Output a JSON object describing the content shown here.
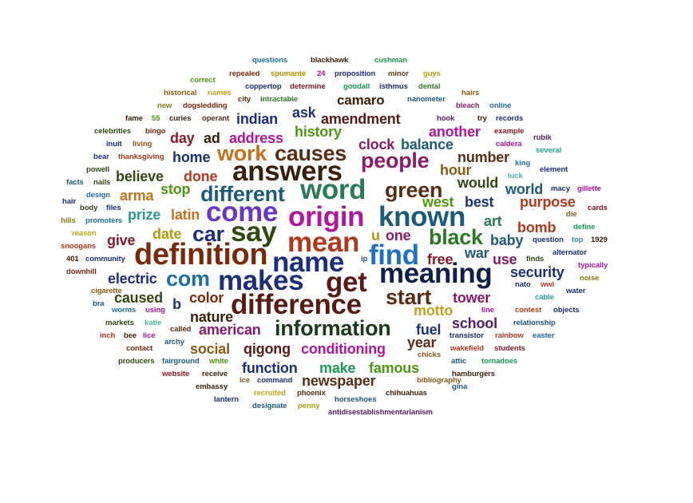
{
  "words": [
    {
      "text": "questions",
      "color": "#1f6fa6"
    },
    {
      "text": "blackhawk",
      "color": "#3b1e08"
    },
    {
      "text": "cushman",
      "color": "#1a9a52"
    },
    {
      "text": "repealed",
      "color": "#7a2a0a"
    },
    {
      "text": "spumante",
      "color": "#b0900a"
    },
    {
      "text": "24",
      "color": "#b0169c"
    },
    {
      "text": "proposition",
      "color": "#1c2f7a"
    },
    {
      "text": "minor",
      "color": "#6b3a18"
    },
    {
      "text": "guys",
      "color": "#b59a10"
    },
    {
      "text": "correct",
      "color": "#4d9a12"
    },
    {
      "text": "coppertop",
      "color": "#1c2f7a"
    },
    {
      "text": "determine",
      "color": "#8b1a2a"
    },
    {
      "text": "goodall",
      "color": "#1a9a52"
    },
    {
      "text": "isthmus",
      "color": "#1c2f7a"
    },
    {
      "text": "dental",
      "color": "#2f7a24"
    },
    {
      "text": "historical",
      "color": "#8a5a14"
    },
    {
      "text": "names",
      "color": "#c2a41e"
    },
    {
      "text": "operant",
      "color": "#5a2e14"
    },
    {
      "text": "hairs",
      "color": "#8a5a14"
    },
    {
      "text": "city",
      "color": "#5a2e14"
    },
    {
      "text": "intractable",
      "color": "#2f7a24"
    },
    {
      "text": "nanometer",
      "color": "#1c5a7a"
    },
    {
      "text": "fame",
      "color": "#3b1e08"
    },
    {
      "text": "55",
      "color": "#4d9a12"
    },
    {
      "text": "curies",
      "color": "#3b1e08"
    },
    {
      "text": "new",
      "color": "#8a7a14"
    },
    {
      "text": "dogsledding",
      "color": "#7a2a0a"
    },
    {
      "text": "bleach",
      "color": "#8a1a6a"
    },
    {
      "text": "online",
      "color": "#1f6fa6"
    },
    {
      "text": "hook",
      "color": "#5a1a6a"
    },
    {
      "text": "try",
      "color": "#3b1e08"
    },
    {
      "text": "records",
      "color": "#1c2f7a"
    },
    {
      "text": "celebrities",
      "color": "#2f4a10"
    },
    {
      "text": "bingo",
      "color": "#7a2a0a"
    },
    {
      "text": "example",
      "color": "#8b1a2a"
    },
    {
      "text": "rubik",
      "color": "#5a1a6a"
    },
    {
      "text": "inuit",
      "color": "#1c2f7a"
    },
    {
      "text": "living",
      "color": "#8a5a14"
    },
    {
      "text": "caldera",
      "color": "#b0169c"
    },
    {
      "text": "several",
      "color": "#2a9a9a"
    },
    {
      "text": "bear",
      "color": "#1c2f7a"
    },
    {
      "text": "thanksgiving",
      "color": "#b03a1a"
    },
    {
      "text": "powell",
      "color": "#2f4a10"
    },
    {
      "text": "king",
      "color": "#1f6fa6"
    },
    {
      "text": "element",
      "color": "#1c2f7a"
    },
    {
      "text": "facts",
      "color": "#1c5a7a"
    },
    {
      "text": "nails",
      "color": "#2f4a10"
    },
    {
      "text": "luck",
      "color": "#4db8a8"
    },
    {
      "text": "design",
      "color": "#1f6fa6"
    },
    {
      "text": "macy",
      "color": "#1c2f7a"
    },
    {
      "text": "gillette",
      "color": "#b0169c"
    },
    {
      "text": "hair",
      "color": "#1c2f7a"
    },
    {
      "text": "body",
      "color": "#2f4a10"
    },
    {
      "text": "files",
      "color": "#1c2f7a"
    },
    {
      "text": "cards",
      "color": "#8b1a2a"
    },
    {
      "text": "die",
      "color": "#8a5a14"
    },
    {
      "text": "hills",
      "color": "#8a7a14"
    },
    {
      "text": "promoters",
      "color": "#1f6fa6"
    },
    {
      "text": "define",
      "color": "#1a9a52"
    },
    {
      "text": "reason",
      "color": "#c2a41e"
    },
    {
      "text": "question",
      "color": "#1c2f7a"
    },
    {
      "text": "top",
      "color": "#2a9a9a"
    },
    {
      "text": "1929",
      "color": "#3b1e08"
    },
    {
      "text": "snoogans",
      "color": "#b03a1a"
    },
    {
      "text": "alternator",
      "color": "#1c2f7a"
    },
    {
      "text": "401",
      "color": "#3b1e08"
    },
    {
      "text": "community",
      "color": "#1c2f7a"
    },
    {
      "text": "ip",
      "color": "#1c5a7a"
    },
    {
      "text": "finds",
      "color": "#2f4a10"
    },
    {
      "text": "typically",
      "color": "#b0169c"
    },
    {
      "text": "downhill",
      "color": "#7a2a0a"
    },
    {
      "text": "nato",
      "color": "#1c2f7a"
    },
    {
      "text": "wwi",
      "color": "#b03a1a"
    },
    {
      "text": "noise",
      "color": "#8a7a14"
    },
    {
      "text": "cigarette",
      "color": "#8a5a14"
    },
    {
      "text": "water",
      "color": "#1c2f7a"
    },
    {
      "text": "bra",
      "color": "#1c5a7a"
    },
    {
      "text": "worms",
      "color": "#1f6fa6"
    },
    {
      "text": "using",
      "color": "#b0169c"
    },
    {
      "text": "line",
      "color": "#b0169c"
    },
    {
      "text": "contest",
      "color": "#b03a1a"
    },
    {
      "text": "cable",
      "color": "#2a9a9a"
    },
    {
      "text": "objects",
      "color": "#1c2f7a"
    },
    {
      "text": "markets",
      "color": "#2f4a10"
    },
    {
      "text": "katie",
      "color": "#4db8a8"
    },
    {
      "text": "relationship",
      "color": "#1c5a7a"
    },
    {
      "text": "called",
      "color": "#5a2e14"
    },
    {
      "text": "inch",
      "color": "#b03a1a"
    },
    {
      "text": "bee",
      "color": "#3b1e08"
    },
    {
      "text": "lice",
      "color": "#b0169c"
    },
    {
      "text": "transistor",
      "color": "#1c2f7a"
    },
    {
      "text": "rainbow",
      "color": "#b03a1a"
    },
    {
      "text": "easter",
      "color": "#1f6fa6"
    },
    {
      "text": "archy",
      "color": "#1c5a7a"
    },
    {
      "text": "contact",
      "color": "#7a2a0a"
    },
    {
      "text": "students",
      "color": "#8b1a2a"
    },
    {
      "text": "chicks",
      "color": "#8a5a14"
    },
    {
      "text": "wakefield",
      "color": "#b03a1a"
    },
    {
      "text": "producers",
      "color": "#2f4a10"
    },
    {
      "text": "fairground",
      "color": "#1c5a7a"
    },
    {
      "text": "white",
      "color": "#4d9a12"
    },
    {
      "text": "attic",
      "color": "#1c5a7a"
    },
    {
      "text": "tornadoes",
      "color": "#1a9a52"
    },
    {
      "text": "website",
      "color": "#8b1a2a"
    },
    {
      "text": "receive",
      "color": "#3b1e08"
    },
    {
      "text": "hamburgers",
      "color": "#3b1e08"
    },
    {
      "text": "ice",
      "color": "#8a5a14"
    },
    {
      "text": "command",
      "color": "#1c2f7a"
    },
    {
      "text": "bibliography",
      "color": "#8a5a14"
    },
    {
      "text": "embassy",
      "color": "#3b1e08"
    },
    {
      "text": "gina",
      "color": "#1c5a7a"
    },
    {
      "text": "recruited",
      "color": "#c2a41e"
    },
    {
      "text": "phoenix",
      "color": "#5a2e14"
    },
    {
      "text": "chihuahuas",
      "color": "#3b1e08"
    },
    {
      "text": "lantern",
      "color": "#1c2f7a"
    },
    {
      "text": "horseshoes",
      "color": "#1c5a7a"
    },
    {
      "text": "designate",
      "color": "#1c5a7a"
    },
    {
      "text": "penny",
      "color": "#b59a10"
    },
    {
      "text": "antidisestablishmentarianism",
      "color": "#5a1a6a"
    },
    {
      "text": "camaro",
      "color": "#3b1e08"
    },
    {
      "text": "indian",
      "color": "#1c2f7a"
    },
    {
      "text": "amendment",
      "color": "#5a1a14"
    },
    {
      "text": "ask",
      "color": "#1c2f7a"
    },
    {
      "text": "history",
      "color": "#4d9a12"
    },
    {
      "text": "another",
      "color": "#b0169c"
    },
    {
      "text": "day",
      "color": "#8b1a2a"
    },
    {
      "text": "ad",
      "color": "#3b1e08"
    },
    {
      "text": "address",
      "color": "#b0169c"
    },
    {
      "text": "clock",
      "color": "#8a1a6a"
    },
    {
      "text": "balance",
      "color": "#1c5a7a"
    },
    {
      "text": "work",
      "color": "#c8701a"
    },
    {
      "text": "causes",
      "color": "#5a2e14"
    },
    {
      "text": "people",
      "color": "#8a1a6a"
    },
    {
      "text": "home",
      "color": "#1c2f7a"
    },
    {
      "text": "number",
      "color": "#5a2e14"
    },
    {
      "text": "answers",
      "color": "#3b1e08"
    },
    {
      "text": "hour",
      "color": "#8a5a14"
    },
    {
      "text": "believe",
      "color": "#2f4a10"
    },
    {
      "text": "done",
      "color": "#b03a1a"
    },
    {
      "text": "word",
      "color": "#2a7a5a"
    },
    {
      "text": "green",
      "color": "#5a2e14"
    },
    {
      "text": "would",
      "color": "#2f4a10"
    },
    {
      "text": "world",
      "color": "#1c5a7a"
    },
    {
      "text": "stop",
      "color": "#4d9a12"
    },
    {
      "text": "different",
      "color": "#1c5a7a"
    },
    {
      "text": "arma",
      "color": "#c8701a"
    },
    {
      "text": "west",
      "color": "#4d9a12"
    },
    {
      "text": "best",
      "color": "#1c2f7a"
    },
    {
      "text": "purpose",
      "color": "#b03a1a"
    },
    {
      "text": "prize",
      "color": "#2a9a9a"
    },
    {
      "text": "latin",
      "color": "#c8701a"
    },
    {
      "text": "come",
      "color": "#6a38c0"
    },
    {
      "text": "origin",
      "color": "#b0169c"
    },
    {
      "text": "known",
      "color": "#1c5a7a"
    },
    {
      "text": "art",
      "color": "#2a7a5a"
    },
    {
      "text": "bomb",
      "color": "#b03a1a"
    },
    {
      "text": "say",
      "color": "#2f4a10"
    },
    {
      "text": "car",
      "color": "#1c2f7a"
    },
    {
      "text": "date",
      "color": "#b59a10"
    },
    {
      "text": "give",
      "color": "#8b1a2a"
    },
    {
      "text": "u",
      "color": "#b59a10"
    },
    {
      "text": "one",
      "color": "#8a1a6a"
    },
    {
      "text": "black",
      "color": "#2a7a24"
    },
    {
      "text": "baby",
      "color": "#1c5a7a"
    },
    {
      "text": "mean",
      "color": "#b03a1a"
    },
    {
      "text": "definition",
      "color": "#7a2a0a"
    },
    {
      "text": "find",
      "color": "#1f6fc8"
    },
    {
      "text": "war",
      "color": "#1c5a7a"
    },
    {
      "text": "name",
      "color": "#1c2f7a"
    },
    {
      "text": "free",
      "color": "#8b1a2a"
    },
    {
      "text": "use",
      "color": "#8a1a6a"
    },
    {
      "text": "com",
      "color": "#1f6fa6"
    },
    {
      "text": "makes",
      "color": "#1c2f7a"
    },
    {
      "text": "get",
      "color": "#5a1a14"
    },
    {
      "text": "meaning",
      "color": "#0d1f4a"
    },
    {
      "text": "security",
      "color": "#1c2f7a"
    },
    {
      "text": "electric",
      "color": "#1c2f7a"
    },
    {
      "text": "start",
      "color": "#5a2e14"
    },
    {
      "text": "caused",
      "color": "#2f4a10"
    },
    {
      "text": "b",
      "color": "#1c2f7a"
    },
    {
      "text": "difference",
      "color": "#5a1a14"
    },
    {
      "text": "tower",
      "color": "#8a1a6a"
    },
    {
      "text": "color",
      "color": "#7a2a0a"
    },
    {
      "text": "motto",
      "color": "#c2a41e"
    },
    {
      "text": "nature",
      "color": "#3b1e08"
    },
    {
      "text": "fuel",
      "color": "#1c2f7a"
    },
    {
      "text": "school",
      "color": "#5a1a6a"
    },
    {
      "text": "information",
      "color": "#1a3a1a"
    },
    {
      "text": "american",
      "color": "#8a1a6a"
    },
    {
      "text": "social",
      "color": "#8a5a14"
    },
    {
      "text": "qigong",
      "color": "#5a1a14"
    },
    {
      "text": "conditioning",
      "color": "#b0169c"
    },
    {
      "text": "year",
      "color": "#5a2e14"
    },
    {
      "text": "function",
      "color": "#1c2f7a"
    },
    {
      "text": "make",
      "color": "#1a9a52"
    },
    {
      "text": "famous",
      "color": "#4d9a12"
    },
    {
      "text": "newspaper",
      "color": "#5a2e14"
    }
  ]
}
